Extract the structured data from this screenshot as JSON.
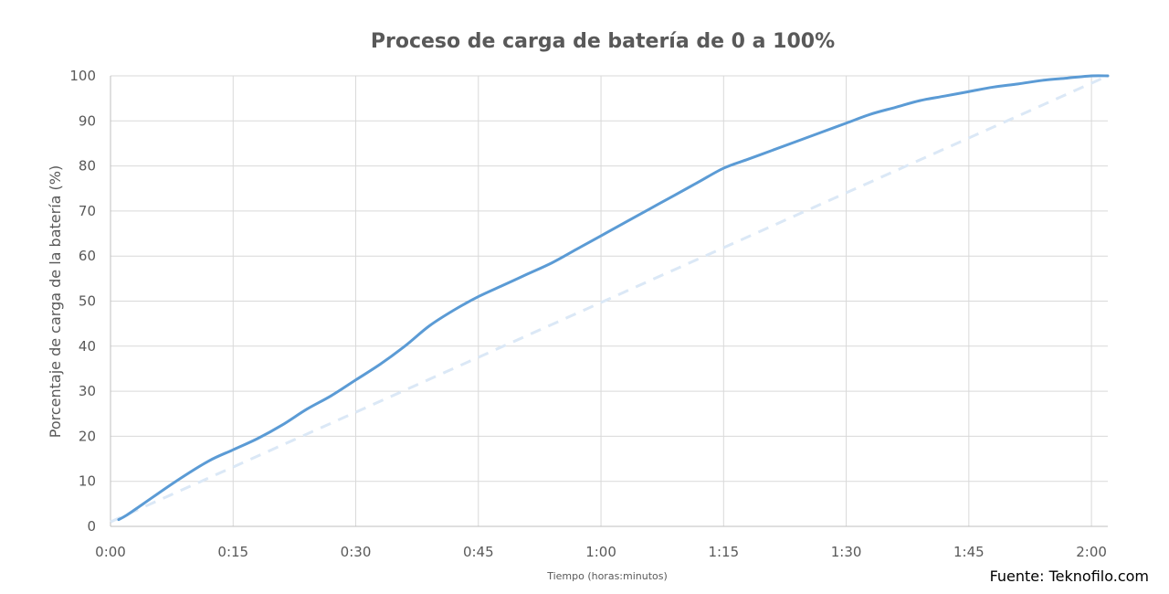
{
  "chart_data": {
    "type": "line",
    "title": "Proceso de carga de batería de 0 a 100%",
    "xlabel": "Tiempo (horas:minutos)",
    "ylabel": "Porcentaje de carga de la batería (%)",
    "source": "Fuente: Teknofilo.com",
    "x_unit": "minutes",
    "xlim": [
      0,
      122
    ],
    "ylim": [
      0,
      100
    ],
    "x_ticks": [
      {
        "value": 0,
        "label": "0:00"
      },
      {
        "value": 15,
        "label": "0:15"
      },
      {
        "value": 30,
        "label": "0:30"
      },
      {
        "value": 45,
        "label": "0:45"
      },
      {
        "value": 60,
        "label": "1:00"
      },
      {
        "value": 75,
        "label": "1:15"
      },
      {
        "value": 90,
        "label": "1:30"
      },
      {
        "value": 105,
        "label": "1:45"
      },
      {
        "value": 120,
        "label": "2:00"
      }
    ],
    "y_ticks": [
      0,
      10,
      20,
      30,
      40,
      50,
      60,
      70,
      80,
      90,
      100
    ],
    "grid": true,
    "series": [
      {
        "style": "solid",
        "color": "#5b9bd5",
        "points": [
          [
            1,
            1.5
          ],
          [
            2,
            2.5
          ],
          [
            4,
            5
          ],
          [
            8,
            10
          ],
          [
            12,
            14.5
          ],
          [
            15,
            17
          ],
          [
            18,
            19.5
          ],
          [
            21,
            22.5
          ],
          [
            24,
            26
          ],
          [
            27,
            29
          ],
          [
            30,
            32.5
          ],
          [
            33,
            36
          ],
          [
            36,
            40
          ],
          [
            39,
            44.5
          ],
          [
            42,
            48
          ],
          [
            45,
            51
          ],
          [
            48,
            53.5
          ],
          [
            51,
            56
          ],
          [
            54,
            58.5
          ],
          [
            57,
            61.5
          ],
          [
            60,
            64.5
          ],
          [
            63,
            67.5
          ],
          [
            66,
            70.5
          ],
          [
            69,
            73.5
          ],
          [
            72,
            76.5
          ],
          [
            75,
            79.5
          ],
          [
            78,
            81.5
          ],
          [
            81,
            83.5
          ],
          [
            84,
            85.5
          ],
          [
            87,
            87.5
          ],
          [
            90,
            89.5
          ],
          [
            93,
            91.5
          ],
          [
            96,
            93
          ],
          [
            99,
            94.5
          ],
          [
            102,
            95.5
          ],
          [
            105,
            96.5
          ],
          [
            108,
            97.5
          ],
          [
            111,
            98.2
          ],
          [
            114,
            99
          ],
          [
            117,
            99.5
          ],
          [
            120,
            100
          ],
          [
            122,
            100
          ]
        ]
      },
      {
        "style": "dashed",
        "color": "#dbe8f6",
        "points": [
          [
            0,
            1
          ],
          [
            122,
            100
          ]
        ]
      }
    ]
  }
}
